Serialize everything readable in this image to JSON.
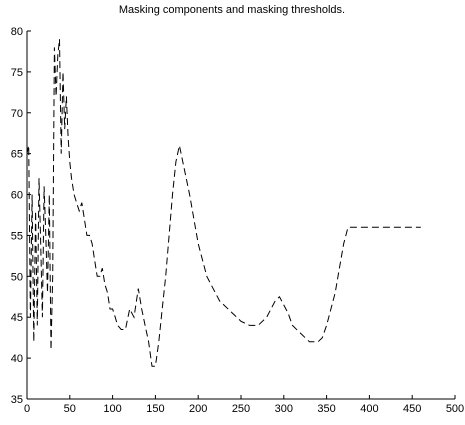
{
  "chart_data": {
    "type": "line",
    "title": "Masking components and masking thresholds.",
    "xlabel": "",
    "ylabel": "",
    "xlim": [
      0,
      500
    ],
    "ylim": [
      35,
      80
    ],
    "x_ticks": [
      "0",
      "50",
      "100",
      "150",
      "200",
      "250",
      "300",
      "350",
      "400",
      "450",
      "500"
    ],
    "y_ticks": [
      "35",
      "40",
      "45",
      "50",
      "55",
      "60",
      "65",
      "70",
      "75",
      "80"
    ],
    "grid": false,
    "line_style": "dashed",
    "line_color": "#000000",
    "series": [
      {
        "x": [
          0,
          2,
          4,
          6,
          8,
          10,
          12,
          14,
          16,
          18,
          20,
          22,
          24,
          26,
          28,
          30,
          32,
          34,
          36,
          38,
          40,
          42,
          44,
          46,
          48,
          50,
          52,
          55,
          58,
          61,
          64,
          67,
          70,
          73,
          76,
          79,
          82,
          85,
          88,
          91,
          94,
          97,
          100,
          103,
          106,
          110,
          115,
          120,
          125,
          130,
          134,
          138,
          142,
          146,
          150,
          154,
          158,
          162,
          166,
          170,
          174,
          178,
          182,
          186,
          190,
          195,
          200,
          205,
          210,
          215,
          220,
          225,
          230,
          240,
          250,
          260,
          270,
          280,
          285,
          290,
          295,
          300,
          305,
          310,
          320,
          330,
          340,
          345,
          350,
          355,
          360,
          365,
          370,
          375,
          380,
          400,
          420,
          440,
          460
        ],
        "values": [
          65,
          66,
          45,
          60,
          42,
          58,
          44,
          62,
          54,
          45,
          61,
          55,
          48,
          60,
          41,
          50,
          78,
          72,
          77,
          79,
          65,
          75,
          68,
          72,
          67,
          64,
          62,
          60,
          59,
          58,
          59,
          57,
          55,
          55,
          54,
          52,
          50,
          50,
          51,
          49,
          48,
          46,
          46,
          45,
          44,
          43.5,
          43.5,
          46,
          45,
          48.5,
          46,
          44,
          42,
          39,
          39,
          42,
          46,
          50,
          55,
          60,
          64,
          66,
          64,
          62,
          60,
          57,
          54,
          52,
          50,
          49,
          48,
          47,
          46.5,
          45.5,
          44.5,
          44,
          44,
          45,
          46,
          47,
          47.5,
          46.5,
          45.5,
          44,
          43,
          42,
          42,
          42.5,
          44,
          46,
          48,
          51,
          54,
          56,
          56,
          56,
          56,
          56,
          56
        ]
      }
    ]
  }
}
